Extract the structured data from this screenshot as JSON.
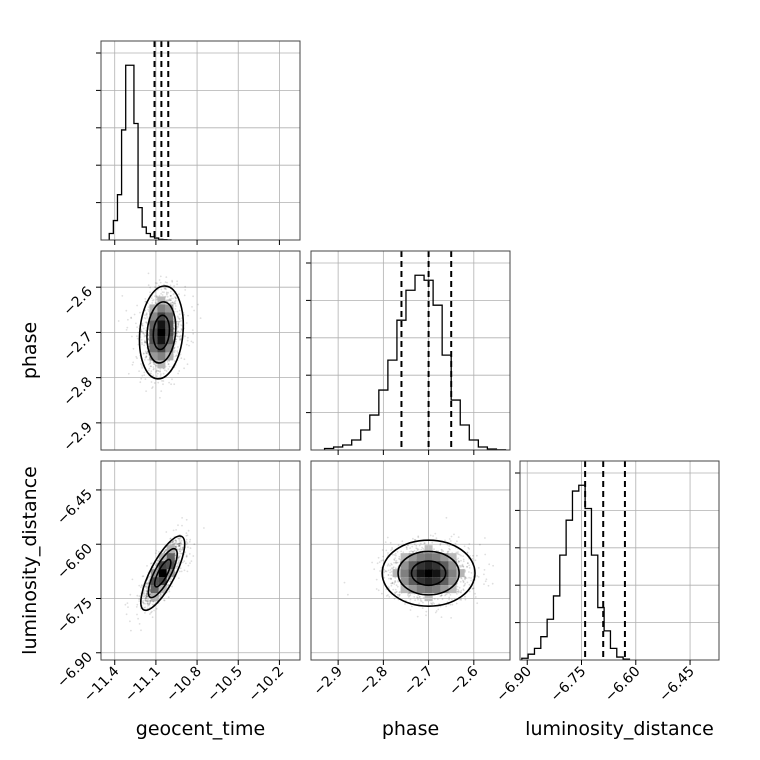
{
  "chart_data": {
    "type": "corner",
    "grid": true,
    "parameters": [
      {
        "name": "geocent_time",
        "xlabel": "geocent_time",
        "range": [
          -11.5,
          -10.05
        ],
        "ticks": [
          -11.4,
          -11.1,
          -10.8,
          -10.5,
          -10.2
        ],
        "tick_labels": [
          "−11.4",
          "−11.1",
          "−10.8",
          "−10.5",
          "−10.2"
        ],
        "quantiles": [
          -11.11,
          -11.06,
          -11.01
        ],
        "hist_start": -11.44,
        "hist_width": 0.03,
        "hist": [
          1,
          3,
          7,
          17,
          27,
          27,
          18,
          5,
          2,
          1,
          0.5,
          0.3,
          0.1,
          0.05,
          0.02
        ]
      },
      {
        "name": "phase",
        "xlabel": "phase",
        "ylabel": "phase",
        "range": [
          -2.96,
          -2.52
        ],
        "ticks": [
          -2.9,
          -2.8,
          -2.7,
          -2.6
        ],
        "tick_labels": [
          "−2.9",
          "−2.8",
          "−2.7",
          "−2.6"
        ],
        "quantiles": [
          -2.76,
          -2.7,
          -2.65
        ],
        "hist_start": -2.93,
        "hist_width": 0.02,
        "hist": [
          0.3,
          0.6,
          1,
          2,
          4,
          7,
          12,
          18,
          26,
          32,
          35,
          34,
          29,
          19,
          10,
          5,
          2,
          0.6,
          0.2,
          0.05
        ]
      },
      {
        "name": "luminosity_distance",
        "xlabel": "luminosity_distance",
        "ylabel": "luminosity_distance",
        "range": [
          -6.92,
          -6.37
        ],
        "ticks": [
          -6.9,
          -6.75,
          -6.6,
          -6.45
        ],
        "tick_labels": [
          "−6.90",
          "−6.75",
          "−6.60",
          "−6.45"
        ],
        "quantiles": [
          -6.74,
          -6.69,
          -6.63
        ],
        "hist_start": -6.915,
        "hist_width": 0.0175,
        "hist": [
          0.3,
          1,
          2,
          4,
          7,
          11,
          18,
          24,
          29,
          30,
          26,
          18,
          9,
          5,
          2,
          0.5,
          0.15
        ]
      }
    ],
    "pairs": [
      {
        "x": "geocent_time",
        "y": "phase",
        "center": [
          -11.06,
          -2.7
        ],
        "sigma": [
          0.07,
          0.045
        ],
        "corr": 0.15
      },
      {
        "x": "geocent_time",
        "y": "luminosity_distance",
        "center": [
          -11.05,
          -6.68
        ],
        "sigma": [
          0.07,
          0.045
        ],
        "corr": 0.78
      },
      {
        "x": "phase",
        "y": "luminosity_distance",
        "center": [
          -2.7,
          -6.68
        ],
        "sigma": [
          0.045,
          0.04
        ],
        "corr": 0.0
      }
    ]
  }
}
